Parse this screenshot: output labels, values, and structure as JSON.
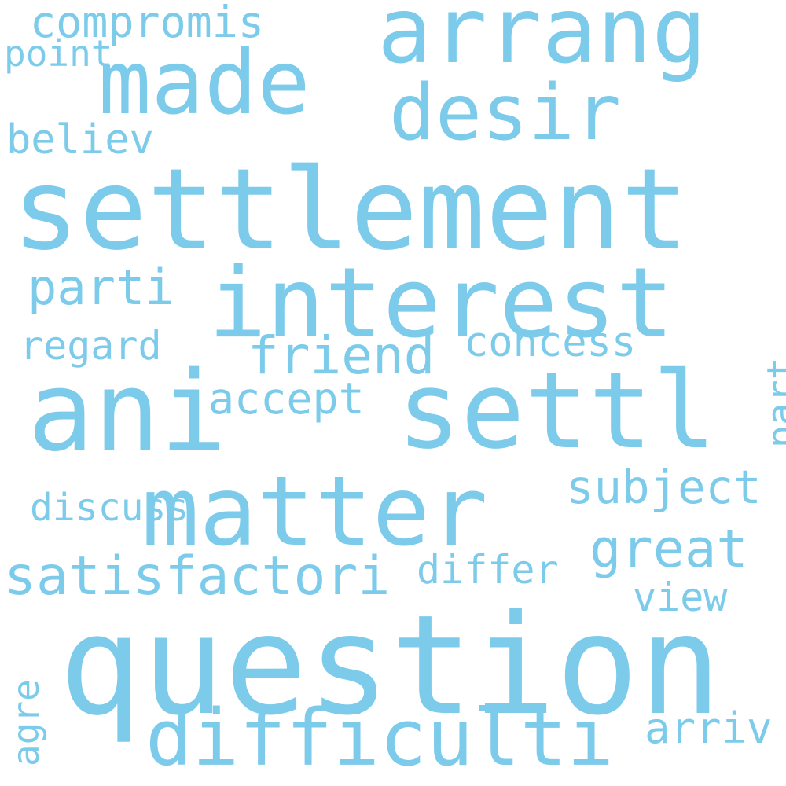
{
  "colors": {
    "word": "#7dcbeb",
    "background": "#ffffff"
  },
  "words": [
    {
      "text": "settlement"
    },
    {
      "text": "question"
    },
    {
      "text": "interest"
    },
    {
      "text": "matter"
    },
    {
      "text": "settl"
    },
    {
      "text": "arrang"
    },
    {
      "text": "ani"
    },
    {
      "text": "made"
    },
    {
      "text": "desir"
    },
    {
      "text": "difficulti"
    },
    {
      "text": "satisfactori"
    },
    {
      "text": "friend"
    },
    {
      "text": "parti"
    },
    {
      "text": "great"
    },
    {
      "text": "subject"
    },
    {
      "text": "concess"
    },
    {
      "text": "regard"
    },
    {
      "text": "accept"
    },
    {
      "text": "differ"
    },
    {
      "text": "compromis"
    },
    {
      "text": "believ"
    },
    {
      "text": "discuss"
    },
    {
      "text": "view"
    },
    {
      "text": "arriv"
    },
    {
      "text": "point"
    },
    {
      "text": "part"
    },
    {
      "text": "agre"
    }
  ]
}
